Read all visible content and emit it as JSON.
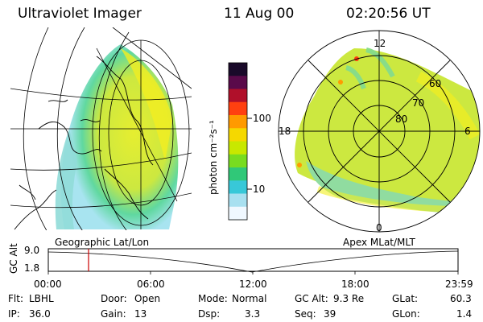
{
  "header": {
    "instrument": "Ultraviolet Imager",
    "date": "11 Aug 00",
    "time": "02:20:56 UT"
  },
  "colorbar": {
    "unit_label": "photon cm⁻²s⁻¹",
    "ticks": [
      "100",
      "10"
    ],
    "colors": [
      "#1a0a2a",
      "#5a0a4a",
      "#b0102a",
      "#ff4010",
      "#ff9a00",
      "#f5d800",
      "#c8e800",
      "#78dc20",
      "#30c878",
      "#38c8d8",
      "#a8e0f0",
      "#f0f8ff"
    ]
  },
  "left_map": {
    "caption": "Geographic Lat/Lon"
  },
  "right_map": {
    "caption": "Apex MLat/MLT",
    "mlt_labels": [
      "12",
      "18",
      "6",
      "0"
    ],
    "lat_labels": [
      "60",
      "70",
      "80"
    ]
  },
  "timeline": {
    "axis_label": "GC Alt",
    "y_ticks": [
      "9.0",
      "1.8"
    ],
    "x_ticks": [
      "00:00",
      "06:00",
      "12:00",
      "18:00",
      "23:59"
    ],
    "marker_color": "#cc0000"
  },
  "info": {
    "flt_label": "Flt:",
    "flt_value": "LBHL",
    "ip_label": "IP:",
    "ip_value": "36.0",
    "door_label": "Door:",
    "door_value": "Open",
    "gain_label": "Gain:",
    "gain_value": "13",
    "mode_label": "Mode:",
    "mode_value": "Normal",
    "dsp_label": "Dsp:",
    "dsp_value": "3.3",
    "gcalt_label": "GC Alt:",
    "gcalt_value": "9.3 Re",
    "seq_label": "Seq:",
    "seq_value": "39",
    "glat_label": "GLat:",
    "glat_value": "60.3",
    "glon_label": "GLon:",
    "glon_value": "1.4"
  }
}
